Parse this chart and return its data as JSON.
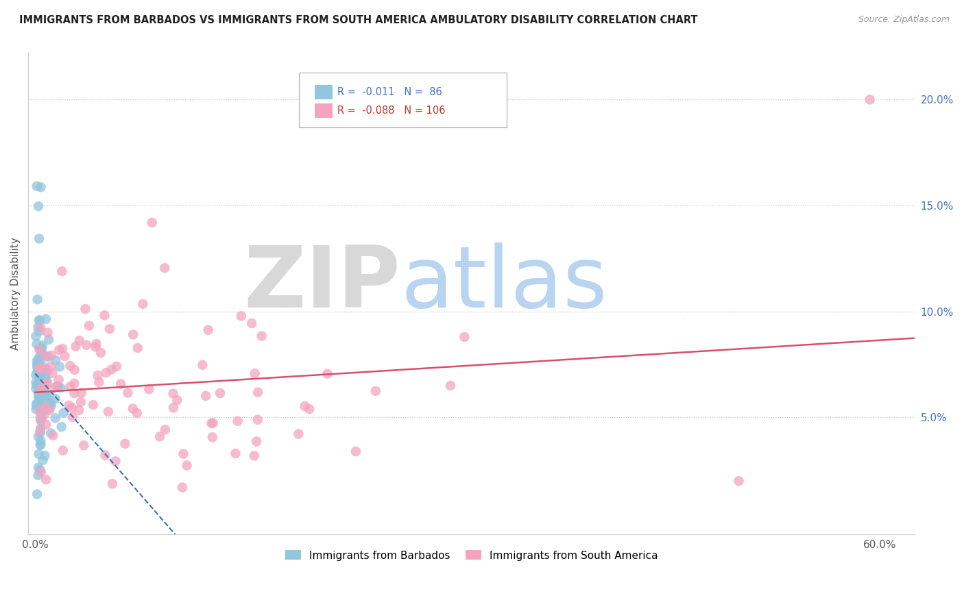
{
  "title": "IMMIGRANTS FROM BARBADOS VS IMMIGRANTS FROM SOUTH AMERICA AMBULATORY DISABILITY CORRELATION CHART",
  "source": "Source: ZipAtlas.com",
  "ylabel": "Ambulatory Disability",
  "ytick_labels": [
    "5.0%",
    "10.0%",
    "15.0%",
    "20.0%"
  ],
  "ytick_values": [
    0.05,
    0.1,
    0.15,
    0.2
  ],
  "xlim": [
    -0.005,
    0.625
  ],
  "ylim": [
    -0.005,
    0.222
  ],
  "series1_label": "Immigrants from Barbados",
  "series2_label": "Immigrants from South America",
  "series1_color": "#92c5de",
  "series2_color": "#f4a4bf",
  "trendline1_color": "#3a6fbd",
  "trendline2_color": "#d94f6b",
  "background_color": "#ffffff",
  "watermark_ZIP": "ZIP",
  "watermark_atlas": "atlas",
  "watermark_ZIP_color": "#d8d8d8",
  "watermark_atlas_color": "#b8d4f0",
  "R1": -0.011,
  "N1": 86,
  "R2": -0.088,
  "N2": 106,
  "legend_R1_color": "#4472c4",
  "legend_R2_color": "#c0392b",
  "legend_N1_color": "#4472c4",
  "legend_N2_color": "#4472c4"
}
